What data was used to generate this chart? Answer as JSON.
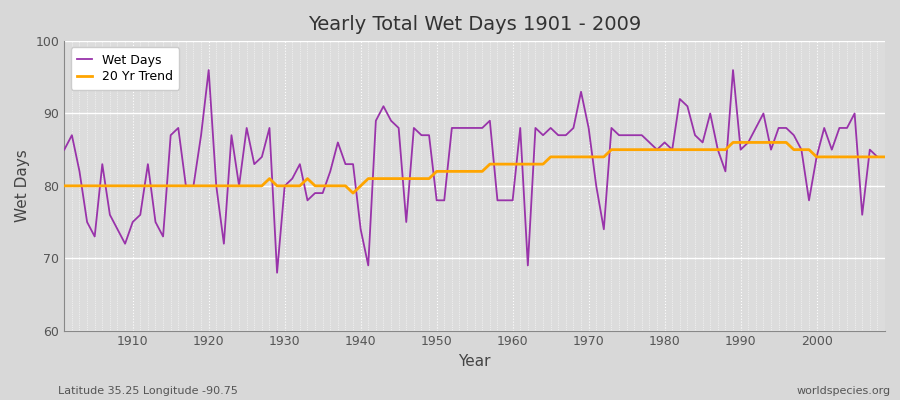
{
  "title": "Yearly Total Wet Days 1901 - 2009",
  "xlabel": "Year",
  "ylabel": "Wet Days",
  "subtitle_left": "Latitude 35.25 Longitude -90.75",
  "subtitle_right": "worldspecies.org",
  "ylim": [
    60,
    100
  ],
  "xlim": [
    1901,
    2009
  ],
  "yticks": [
    60,
    70,
    80,
    90,
    100
  ],
  "xticks": [
    1910,
    1920,
    1930,
    1940,
    1950,
    1960,
    1970,
    1980,
    1990,
    2000
  ],
  "wet_days_color": "#9933AA",
  "trend_color": "#FFA500",
  "background_color": "#D8D8D8",
  "plot_bg_color": "#DCDCDC",
  "grid_color": "#FFFFFF",
  "legend_wet": "Wet Days",
  "legend_trend": "20 Yr Trend",
  "years": [
    1901,
    1902,
    1903,
    1904,
    1905,
    1906,
    1907,
    1908,
    1909,
    1910,
    1911,
    1912,
    1913,
    1914,
    1915,
    1916,
    1917,
    1918,
    1919,
    1920,
    1921,
    1922,
    1923,
    1924,
    1925,
    1926,
    1927,
    1928,
    1929,
    1930,
    1931,
    1932,
    1933,
    1934,
    1935,
    1936,
    1937,
    1938,
    1939,
    1940,
    1941,
    1942,
    1943,
    1944,
    1945,
    1946,
    1947,
    1948,
    1949,
    1950,
    1951,
    1952,
    1953,
    1954,
    1955,
    1956,
    1957,
    1958,
    1959,
    1960,
    1961,
    1962,
    1963,
    1964,
    1965,
    1966,
    1967,
    1968,
    1969,
    1970,
    1971,
    1972,
    1973,
    1974,
    1975,
    1976,
    1977,
    1978,
    1979,
    1980,
    1981,
    1982,
    1983,
    1984,
    1985,
    1986,
    1987,
    1988,
    1989,
    1990,
    1991,
    1992,
    1993,
    1994,
    1995,
    1996,
    1997,
    1998,
    1999,
    2000,
    2001,
    2002,
    2003,
    2004,
    2005,
    2006,
    2007,
    2008,
    2009
  ],
  "wet_days": [
    85,
    87,
    82,
    75,
    73,
    83,
    76,
    74,
    72,
    75,
    76,
    83,
    75,
    73,
    87,
    88,
    80,
    80,
    87,
    96,
    80,
    72,
    87,
    80,
    88,
    83,
    84,
    88,
    68,
    80,
    81,
    83,
    78,
    79,
    79,
    82,
    86,
    83,
    83,
    74,
    69,
    89,
    91,
    89,
    88,
    75,
    88,
    87,
    87,
    78,
    78,
    88,
    88,
    88,
    88,
    88,
    89,
    78,
    78,
    78,
    88,
    69,
    88,
    87,
    88,
    87,
    87,
    88,
    93,
    88,
    80,
    74,
    88,
    87,
    87,
    87,
    87,
    86,
    85,
    86,
    85,
    92,
    91,
    87,
    86,
    90,
    85,
    82,
    96,
    85,
    86,
    88,
    90,
    85,
    88,
    88,
    87,
    85,
    78,
    84,
    88,
    85,
    88,
    88,
    90,
    76,
    85,
    84,
    84
  ],
  "trend_years": [
    1901,
    1902,
    1903,
    1904,
    1905,
    1906,
    1907,
    1908,
    1909,
    1910,
    1911,
    1912,
    1913,
    1914,
    1915,
    1916,
    1917,
    1918,
    1919,
    1920,
    1921,
    1922,
    1923,
    1924,
    1925,
    1926,
    1927,
    1928,
    1929,
    1930,
    1931,
    1932,
    1933,
    1934,
    1935,
    1936,
    1937,
    1938,
    1939,
    1940,
    1941,
    1942,
    1943,
    1944,
    1945,
    1946,
    1947,
    1948,
    1949,
    1950,
    1951,
    1952,
    1953,
    1954,
    1955,
    1956,
    1957,
    1958,
    1959,
    1960,
    1961,
    1962,
    1963,
    1964,
    1965,
    1966,
    1967,
    1968,
    1969,
    1970,
    1971,
    1972,
    1973,
    1974,
    1975,
    1976,
    1977,
    1978,
    1979,
    1980,
    1981,
    1982,
    1983,
    1984,
    1985,
    1986,
    1987,
    1988,
    1989,
    1990,
    1991,
    1992,
    1993,
    1994,
    1995,
    1996,
    1997,
    1998,
    1999,
    2000,
    2001,
    2002,
    2003,
    2004,
    2005,
    2006,
    2007,
    2008,
    2009
  ],
  "trend_values": [
    80,
    80,
    80,
    80,
    80,
    80,
    80,
    80,
    80,
    80,
    80,
    80,
    80,
    80,
    80,
    80,
    80,
    80,
    80,
    80,
    80,
    80,
    80,
    80,
    80,
    80,
    80,
    81,
    80,
    80,
    80,
    80,
    81,
    80,
    80,
    80,
    80,
    80,
    79,
    80,
    81,
    81,
    81,
    81,
    81,
    81,
    81,
    81,
    81,
    82,
    82,
    82,
    82,
    82,
    82,
    82,
    83,
    83,
    83,
    83,
    83,
    83,
    83,
    83,
    84,
    84,
    84,
    84,
    84,
    84,
    84,
    84,
    85,
    85,
    85,
    85,
    85,
    85,
    85,
    85,
    85,
    85,
    85,
    85,
    85,
    85,
    85,
    85,
    86,
    86,
    86,
    86,
    86,
    86,
    86,
    86,
    85,
    85,
    85,
    84,
    84,
    84,
    84,
    84,
    84,
    84,
    84,
    84,
    84
  ]
}
